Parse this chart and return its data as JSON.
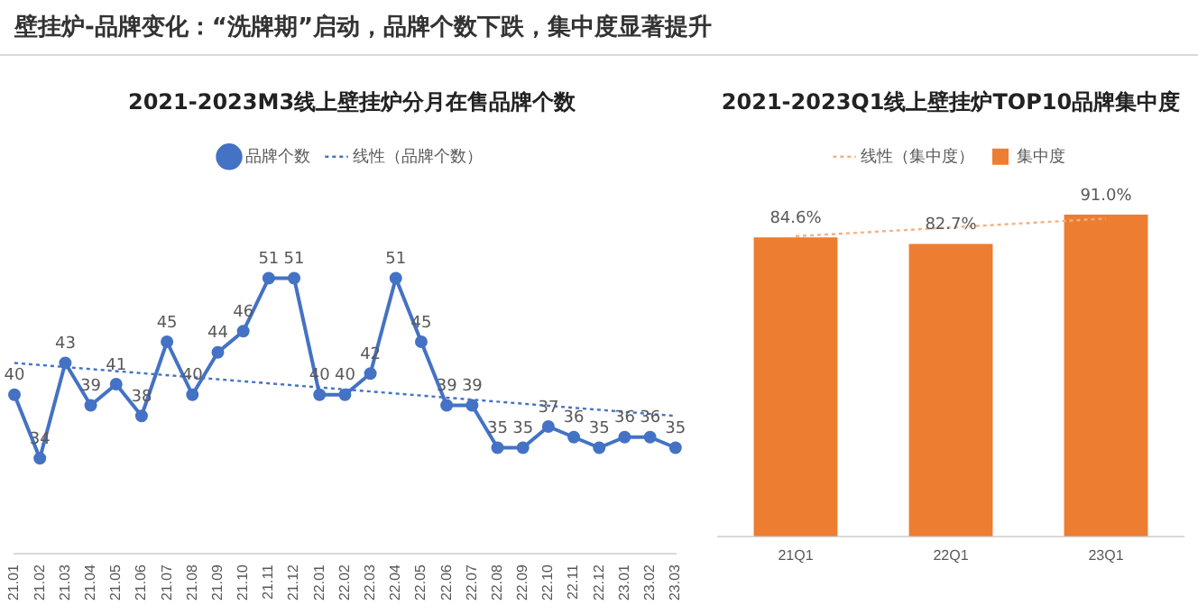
{
  "chart_data": [
    {
      "type": "line",
      "title": "2021-2023M3线上壁挂炉分月在售品牌个数",
      "annotations": [
        "壁挂炉-品牌变化：“洗牌期”启动，品牌个数下跌，集中度显著提升"
      ],
      "categories": [
        "21.01",
        "21.02",
        "21.03",
        "21.04",
        "21.05",
        "21.06",
        "21.07",
        "21.08",
        "21.09",
        "21.10",
        "21.11",
        "21.12",
        "22.01",
        "22.02",
        "22.03",
        "22.04",
        "22.05",
        "22.06",
        "22.07",
        "22.08",
        "22.09",
        "22.10",
        "22.11",
        "22.12",
        "23.01",
        "23.02",
        "23.03"
      ],
      "series": [
        {
          "name": "品牌个数",
          "color": "#4472c4",
          "marker": "circle",
          "values": [
            40,
            34,
            43,
            39,
            41,
            38,
            45,
            40,
            44,
            46,
            51,
            51,
            40,
            40,
            42,
            51,
            45,
            39,
            39,
            35,
            35,
            37,
            36,
            35,
            36,
            36,
            35
          ],
          "value_labels": [
            "40",
            "34",
            "43",
            "39",
            "41",
            "38",
            "45",
            "40",
            "44",
            "46",
            "51",
            "51",
            "40",
            "40",
            "42",
            "51",
            "45",
            "39",
            "39",
            "35",
            "35",
            "37",
            "36",
            "35",
            "36",
            "36",
            "35"
          ]
        },
        {
          "name": "线性（品牌个数）",
          "type": "line",
          "color": "#4472c4",
          "line_style": "dotted",
          "marker": "none",
          "x": [
            "21.01",
            "23.03"
          ],
          "values": [
            43,
            38
          ]
        }
      ],
      "legend": "top",
      "grid": false,
      "tick_labels": "x"
    },
    {
      "type": "bar",
      "title": "2021-2023Q1线上壁挂炉TOP10品牌集中度",
      "categories": [
        "21Q1",
        "22Q1",
        "23Q1"
      ],
      "series": [
        {
          "name": "集中度",
          "color": "#ed7d31",
          "values": [
            84.6,
            82.7,
            91.0
          ],
          "value_labels": [
            "84.6%",
            "82.7%",
            "91.0%"
          ]
        },
        {
          "name": "线性（集中度）",
          "type": "line",
          "color": "#f4b183",
          "line_style": "dotted",
          "marker": "none",
          "x": [
            "21Q1",
            "23Q1"
          ],
          "values": [
            84.9,
            89.9
          ]
        }
      ],
      "legend": "top",
      "grid": false,
      "tick_labels": "x"
    }
  ]
}
